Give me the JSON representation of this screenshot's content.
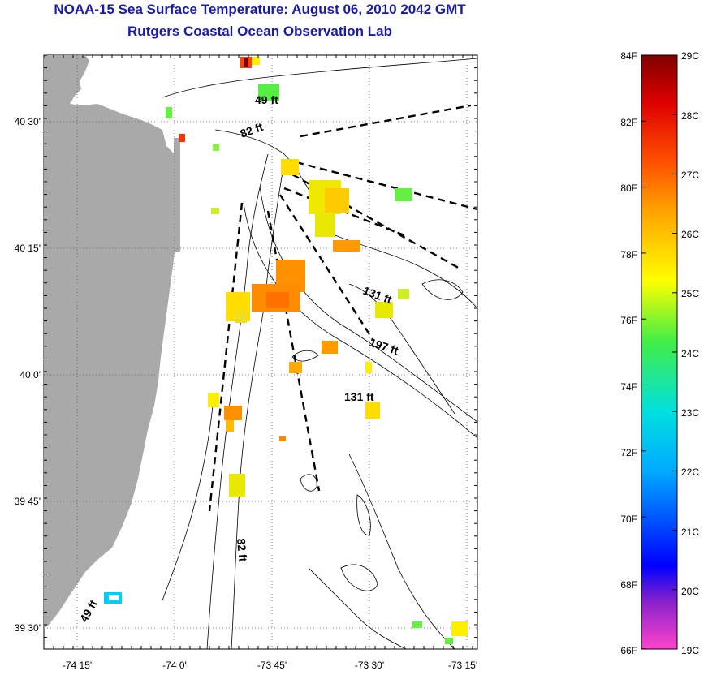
{
  "header": {
    "title": "NOAA-15 Sea Surface Temperature:  August 06, 2010 2042 GMT",
    "subtitle": "Rutgers Coastal Ocean Observation Lab"
  },
  "map": {
    "lat_ticks": [
      "40 30'",
      "40 15'",
      "40 0'",
      "39 45'",
      "39 30'"
    ],
    "lon_ticks": [
      "-74 15'",
      "-74 0'",
      "-73 45'",
      "-73 30'",
      "-73 15'"
    ],
    "contour_labels": [
      "49 ft",
      "82 ft",
      "131 ft",
      "197 ft",
      "131 ft",
      "82 ft",
      "49 ft"
    ]
  },
  "colorbar": {
    "f_labels": [
      "84F",
      "82F",
      "80F",
      "78F",
      "76F",
      "74F",
      "72F",
      "70F",
      "68F",
      "66F"
    ],
    "c_labels": [
      "29C",
      "28C",
      "27C",
      "26C",
      "25C",
      "24C",
      "23C",
      "22C",
      "21C",
      "20C",
      "19C"
    ],
    "colors": [
      "#ff44cc",
      "#8822cc",
      "#0000ff",
      "#00aaff",
      "#00e0e0",
      "#44ee44",
      "#ffff00",
      "#ffa000",
      "#ff5000",
      "#dd0000",
      "#800000"
    ]
  }
}
